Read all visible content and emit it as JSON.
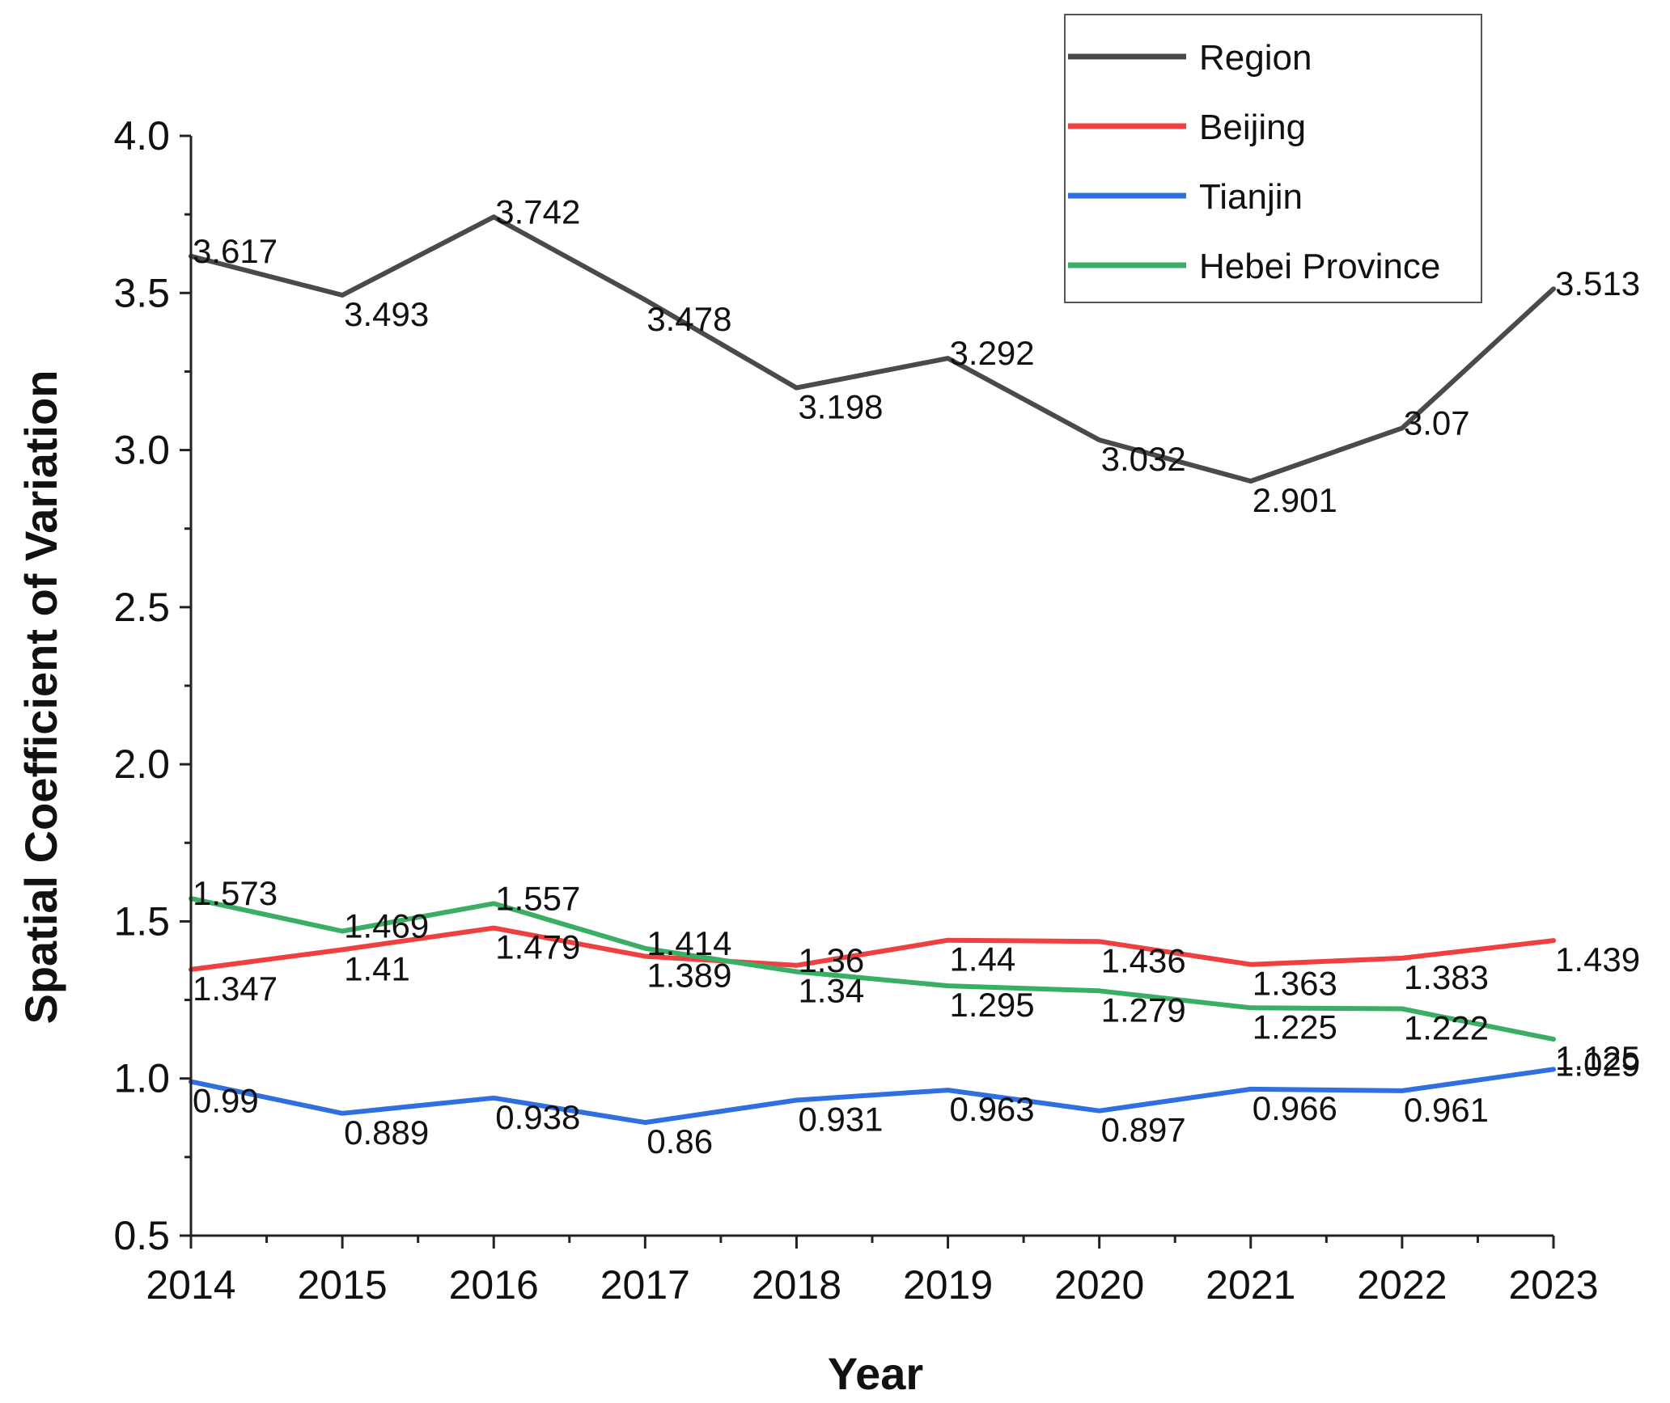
{
  "chart_data": {
    "type": "line",
    "title": "",
    "xlabel": "Year",
    "ylabel": "Spatial Coefficient of Variation",
    "x": [
      "2014",
      "2015",
      "2016",
      "2017",
      "2018",
      "2019",
      "2020",
      "2021",
      "2022",
      "2023"
    ],
    "y_ticks": [
      "0.5",
      "1.0",
      "1.5",
      "2.0",
      "2.5",
      "3.0",
      "3.5",
      "4.0"
    ],
    "ylim": [
      0.5,
      4.0
    ],
    "grid": false,
    "legend_position": "top-right",
    "series": [
      {
        "name": "Region",
        "color": "#4a4a4a",
        "values": [
          3.617,
          3.493,
          3.742,
          3.478,
          3.198,
          3.292,
          3.032,
          2.901,
          3.07,
          3.513
        ],
        "labels": [
          "3.617",
          "3.493",
          "3.742",
          "3.478",
          "3.198",
          "3.292",
          "3.032",
          "2.901",
          "3.07",
          "3.513"
        ]
      },
      {
        "name": "Beijing",
        "color": "#ee4040",
        "values": [
          1.347,
          1.41,
          1.479,
          1.389,
          1.36,
          1.44,
          1.436,
          1.363,
          1.383,
          1.439
        ],
        "labels": [
          "1.347",
          "1.41",
          "1.479",
          "1.389",
          "1.36",
          "1.44",
          "1.436",
          "1.363",
          "1.383",
          "1.439"
        ]
      },
      {
        "name": "Tianjin",
        "color": "#2f6fe0",
        "values": [
          0.99,
          0.889,
          0.938,
          0.86,
          0.931,
          0.963,
          0.897,
          0.966,
          0.961,
          1.029
        ],
        "labels": [
          "0.99",
          "0.889",
          "0.938",
          "0.86",
          "0.931",
          "0.963",
          "0.897",
          "0.966",
          "0.961",
          "1.029"
        ]
      },
      {
        "name": "Hebei Province",
        "color": "#3aae64",
        "values": [
          1.573,
          1.469,
          1.557,
          1.414,
          1.34,
          1.295,
          1.279,
          1.225,
          1.222,
          1.125
        ],
        "labels": [
          "1.573",
          "1.469",
          "1.557",
          "1.414",
          "1.34",
          "1.295",
          "1.279",
          "1.225",
          "1.222",
          "1.125"
        ]
      }
    ]
  }
}
